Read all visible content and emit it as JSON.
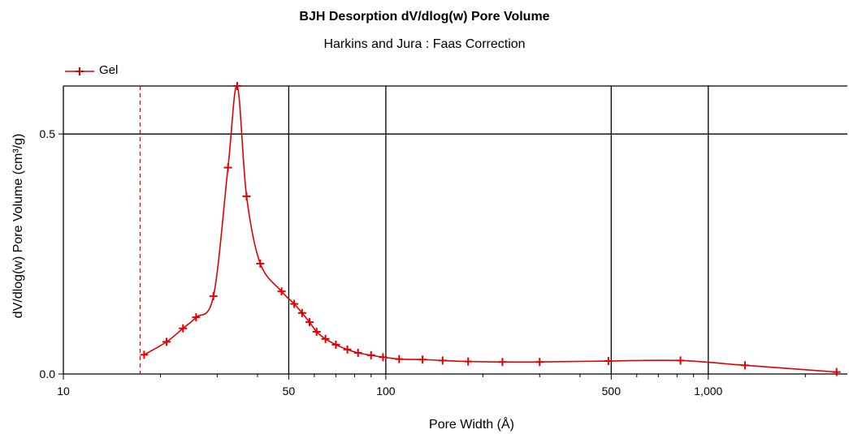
{
  "chart_data": {
    "type": "line",
    "title": "BJH Desorption dV/dlog(w) Pore Volume",
    "subtitle": "Harkins and Jura : Faas Correction",
    "xlabel": "Pore Width (Å)",
    "ylabel": "dV/dlog(w) Pore Volume (cm³/g)",
    "xscale": "log",
    "xlim": [
      10,
      2700
    ],
    "ylim": [
      0,
      0.6
    ],
    "x_ticks": [
      {
        "value": 10,
        "label": "10"
      },
      {
        "value": 50,
        "label": "50"
      },
      {
        "value": 100,
        "label": "100"
      },
      {
        "value": 500,
        "label": "500"
      },
      {
        "value": 1000,
        "label": "1,000"
      }
    ],
    "y_ticks": [
      {
        "value": 0,
        "label": "0.0"
      },
      {
        "value": 0.5,
        "label": "0.5"
      }
    ],
    "grid": true,
    "legend_position": "top-left",
    "reference_line_x": 17.3,
    "series": [
      {
        "name": "Gel",
        "color": "#e00000",
        "x": [
          17.8,
          20.9,
          23.5,
          25.8,
          29.2,
          32.4,
          34.6,
          37.0,
          40.8,
          47.5,
          52.0,
          55.0,
          58.0,
          61.0,
          65.0,
          70.0,
          76.0,
          82.0,
          90.0,
          98.0,
          110.0,
          130.0,
          150.0,
          180.0,
          230.0,
          300.0,
          490.0,
          820.0,
          1300.0,
          2500.0
        ],
        "y": [
          0.04,
          0.067,
          0.095,
          0.118,
          0.162,
          0.43,
          0.6,
          0.37,
          0.23,
          0.172,
          0.146,
          0.127,
          0.108,
          0.088,
          0.073,
          0.061,
          0.051,
          0.044,
          0.039,
          0.035,
          0.031,
          0.03,
          0.028,
          0.026,
          0.025,
          0.025,
          0.027,
          0.028,
          0.018,
          0.004
        ]
      }
    ]
  }
}
